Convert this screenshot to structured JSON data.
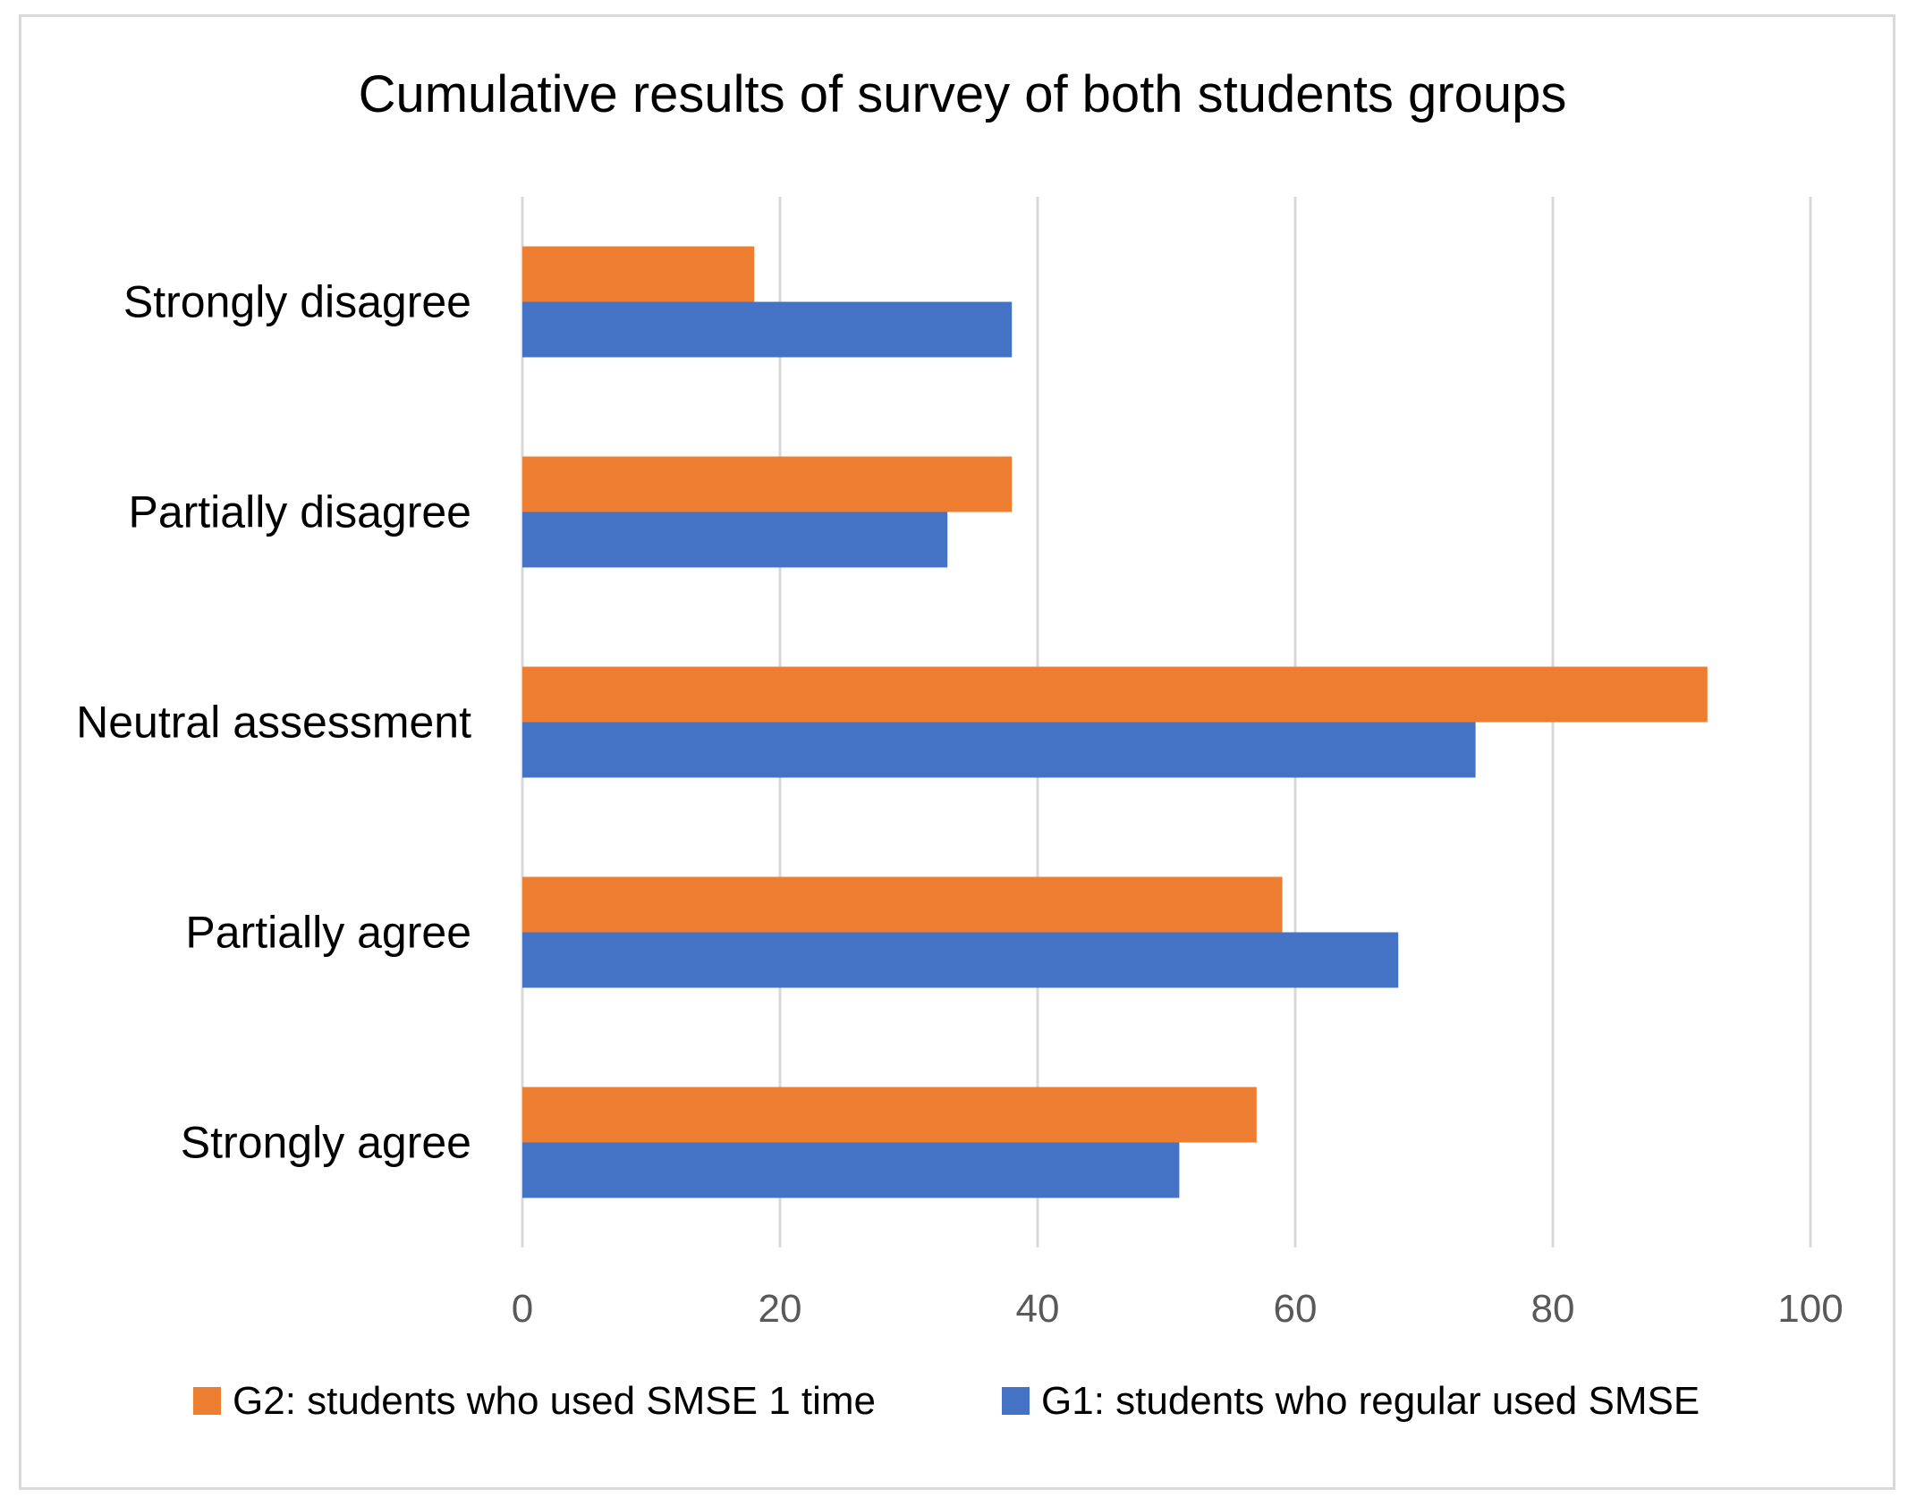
{
  "chart_data": {
    "type": "bar",
    "orientation": "horizontal",
    "title": "Cumulative results of survey of both students groups",
    "categories": [
      "Strongly disagree",
      "Partially disagree",
      "Neutral assessment",
      "Partially agree",
      "Strongly agree"
    ],
    "series": [
      {
        "name": "G2: students who used SMSE 1 time",
        "color": "#ED7D31",
        "values": [
          18,
          38,
          92,
          59,
          57
        ]
      },
      {
        "name": "G1: students who regular used SMSE",
        "color": "#4472C4",
        "values": [
          38,
          33,
          74,
          68,
          51
        ]
      }
    ],
    "xlim": [
      0,
      100
    ],
    "xticks": [
      "0",
      "20",
      "40",
      "60",
      "80",
      "100"
    ],
    "grid": "vertical",
    "legend": "bottom"
  }
}
